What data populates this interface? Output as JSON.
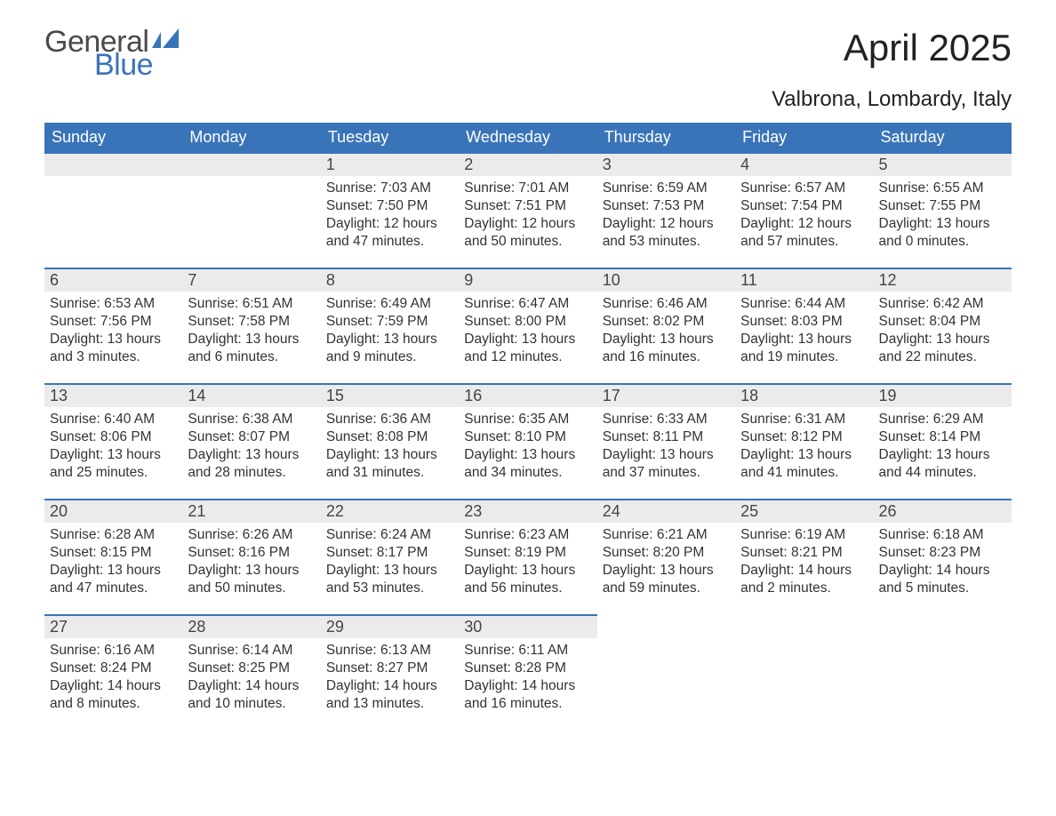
{
  "logo": {
    "text_top": "General",
    "text_bottom": "Blue",
    "top_color": "#4a4a4a",
    "bottom_color": "#3a74b8",
    "shape_color": "#3a74b8"
  },
  "title": "April 2025",
  "subtitle": "Valbrona, Lombardy, Italy",
  "header_bg": "#3a74b8",
  "header_text_color": "#ffffff",
  "daybar_bg": "#ebebeb",
  "daybar_border": "#3a74b8",
  "text_color": "#333333",
  "background_color": "#ffffff",
  "font_family": "Arial",
  "title_fontsize": 42,
  "subtitle_fontsize": 24,
  "header_fontsize": 18,
  "body_fontsize": 15.5,
  "day_headers": [
    "Sunday",
    "Monday",
    "Tuesday",
    "Wednesday",
    "Thursday",
    "Friday",
    "Saturday"
  ],
  "weeks": [
    [
      {
        "daynum": "",
        "sunrise": "",
        "sunset": "",
        "daylight1": "",
        "daylight2": ""
      },
      {
        "daynum": "",
        "sunrise": "",
        "sunset": "",
        "daylight1": "",
        "daylight2": ""
      },
      {
        "daynum": "1",
        "sunrise": "Sunrise: 7:03 AM",
        "sunset": "Sunset: 7:50 PM",
        "daylight1": "Daylight: 12 hours",
        "daylight2": "and 47 minutes."
      },
      {
        "daynum": "2",
        "sunrise": "Sunrise: 7:01 AM",
        "sunset": "Sunset: 7:51 PM",
        "daylight1": "Daylight: 12 hours",
        "daylight2": "and 50 minutes."
      },
      {
        "daynum": "3",
        "sunrise": "Sunrise: 6:59 AM",
        "sunset": "Sunset: 7:53 PM",
        "daylight1": "Daylight: 12 hours",
        "daylight2": "and 53 minutes."
      },
      {
        "daynum": "4",
        "sunrise": "Sunrise: 6:57 AM",
        "sunset": "Sunset: 7:54 PM",
        "daylight1": "Daylight: 12 hours",
        "daylight2": "and 57 minutes."
      },
      {
        "daynum": "5",
        "sunrise": "Sunrise: 6:55 AM",
        "sunset": "Sunset: 7:55 PM",
        "daylight1": "Daylight: 13 hours",
        "daylight2": "and 0 minutes."
      }
    ],
    [
      {
        "daynum": "6",
        "sunrise": "Sunrise: 6:53 AM",
        "sunset": "Sunset: 7:56 PM",
        "daylight1": "Daylight: 13 hours",
        "daylight2": "and 3 minutes."
      },
      {
        "daynum": "7",
        "sunrise": "Sunrise: 6:51 AM",
        "sunset": "Sunset: 7:58 PM",
        "daylight1": "Daylight: 13 hours",
        "daylight2": "and 6 minutes."
      },
      {
        "daynum": "8",
        "sunrise": "Sunrise: 6:49 AM",
        "sunset": "Sunset: 7:59 PM",
        "daylight1": "Daylight: 13 hours",
        "daylight2": "and 9 minutes."
      },
      {
        "daynum": "9",
        "sunrise": "Sunrise: 6:47 AM",
        "sunset": "Sunset: 8:00 PM",
        "daylight1": "Daylight: 13 hours",
        "daylight2": "and 12 minutes."
      },
      {
        "daynum": "10",
        "sunrise": "Sunrise: 6:46 AM",
        "sunset": "Sunset: 8:02 PM",
        "daylight1": "Daylight: 13 hours",
        "daylight2": "and 16 minutes."
      },
      {
        "daynum": "11",
        "sunrise": "Sunrise: 6:44 AM",
        "sunset": "Sunset: 8:03 PM",
        "daylight1": "Daylight: 13 hours",
        "daylight2": "and 19 minutes."
      },
      {
        "daynum": "12",
        "sunrise": "Sunrise: 6:42 AM",
        "sunset": "Sunset: 8:04 PM",
        "daylight1": "Daylight: 13 hours",
        "daylight2": "and 22 minutes."
      }
    ],
    [
      {
        "daynum": "13",
        "sunrise": "Sunrise: 6:40 AM",
        "sunset": "Sunset: 8:06 PM",
        "daylight1": "Daylight: 13 hours",
        "daylight2": "and 25 minutes."
      },
      {
        "daynum": "14",
        "sunrise": "Sunrise: 6:38 AM",
        "sunset": "Sunset: 8:07 PM",
        "daylight1": "Daylight: 13 hours",
        "daylight2": "and 28 minutes."
      },
      {
        "daynum": "15",
        "sunrise": "Sunrise: 6:36 AM",
        "sunset": "Sunset: 8:08 PM",
        "daylight1": "Daylight: 13 hours",
        "daylight2": "and 31 minutes."
      },
      {
        "daynum": "16",
        "sunrise": "Sunrise: 6:35 AM",
        "sunset": "Sunset: 8:10 PM",
        "daylight1": "Daylight: 13 hours",
        "daylight2": "and 34 minutes."
      },
      {
        "daynum": "17",
        "sunrise": "Sunrise: 6:33 AM",
        "sunset": "Sunset: 8:11 PM",
        "daylight1": "Daylight: 13 hours",
        "daylight2": "and 37 minutes."
      },
      {
        "daynum": "18",
        "sunrise": "Sunrise: 6:31 AM",
        "sunset": "Sunset: 8:12 PM",
        "daylight1": "Daylight: 13 hours",
        "daylight2": "and 41 minutes."
      },
      {
        "daynum": "19",
        "sunrise": "Sunrise: 6:29 AM",
        "sunset": "Sunset: 8:14 PM",
        "daylight1": "Daylight: 13 hours",
        "daylight2": "and 44 minutes."
      }
    ],
    [
      {
        "daynum": "20",
        "sunrise": "Sunrise: 6:28 AM",
        "sunset": "Sunset: 8:15 PM",
        "daylight1": "Daylight: 13 hours",
        "daylight2": "and 47 minutes."
      },
      {
        "daynum": "21",
        "sunrise": "Sunrise: 6:26 AM",
        "sunset": "Sunset: 8:16 PM",
        "daylight1": "Daylight: 13 hours",
        "daylight2": "and 50 minutes."
      },
      {
        "daynum": "22",
        "sunrise": "Sunrise: 6:24 AM",
        "sunset": "Sunset: 8:17 PM",
        "daylight1": "Daylight: 13 hours",
        "daylight2": "and 53 minutes."
      },
      {
        "daynum": "23",
        "sunrise": "Sunrise: 6:23 AM",
        "sunset": "Sunset: 8:19 PM",
        "daylight1": "Daylight: 13 hours",
        "daylight2": "and 56 minutes."
      },
      {
        "daynum": "24",
        "sunrise": "Sunrise: 6:21 AM",
        "sunset": "Sunset: 8:20 PM",
        "daylight1": "Daylight: 13 hours",
        "daylight2": "and 59 minutes."
      },
      {
        "daynum": "25",
        "sunrise": "Sunrise: 6:19 AM",
        "sunset": "Sunset: 8:21 PM",
        "daylight1": "Daylight: 14 hours",
        "daylight2": "and 2 minutes."
      },
      {
        "daynum": "26",
        "sunrise": "Sunrise: 6:18 AM",
        "sunset": "Sunset: 8:23 PM",
        "daylight1": "Daylight: 14 hours",
        "daylight2": "and 5 minutes."
      }
    ],
    [
      {
        "daynum": "27",
        "sunrise": "Sunrise: 6:16 AM",
        "sunset": "Sunset: 8:24 PM",
        "daylight1": "Daylight: 14 hours",
        "daylight2": "and 8 minutes."
      },
      {
        "daynum": "28",
        "sunrise": "Sunrise: 6:14 AM",
        "sunset": "Sunset: 8:25 PM",
        "daylight1": "Daylight: 14 hours",
        "daylight2": "and 10 minutes."
      },
      {
        "daynum": "29",
        "sunrise": "Sunrise: 6:13 AM",
        "sunset": "Sunset: 8:27 PM",
        "daylight1": "Daylight: 14 hours",
        "daylight2": "and 13 minutes."
      },
      {
        "daynum": "30",
        "sunrise": "Sunrise: 6:11 AM",
        "sunset": "Sunset: 8:28 PM",
        "daylight1": "Daylight: 14 hours",
        "daylight2": "and 16 minutes."
      },
      {
        "daynum": "",
        "sunrise": "",
        "sunset": "",
        "daylight1": "",
        "daylight2": ""
      },
      {
        "daynum": "",
        "sunrise": "",
        "sunset": "",
        "daylight1": "",
        "daylight2": ""
      },
      {
        "daynum": "",
        "sunrise": "",
        "sunset": "",
        "daylight1": "",
        "daylight2": ""
      }
    ]
  ]
}
